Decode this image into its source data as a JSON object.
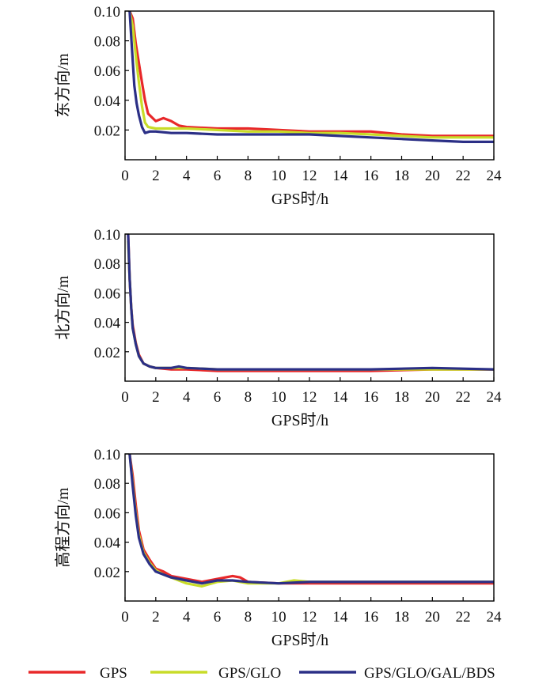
{
  "figure": {
    "legend_position": "bottom",
    "colors": {
      "GPS": "#e8282a",
      "GPS/GLO": "#c8dc28",
      "GPS/GLO/GAL/BDS": "#2b2f86"
    }
  },
  "legend": [
    {
      "label": "GPS",
      "color": "#e8282a"
    },
    {
      "label": "GPS/GLO",
      "color": "#c8dc28"
    },
    {
      "label": "GPS/GLO/GAL/BDS",
      "color": "#2b2f86"
    }
  ],
  "chart_data": [
    {
      "type": "line",
      "xlabel": "GPS时/h",
      "ylabel": "东方向/m",
      "xlim": [
        0,
        24
      ],
      "ylim": [
        0,
        0.1
      ],
      "xticks": [
        0,
        2,
        4,
        6,
        8,
        10,
        12,
        14,
        16,
        18,
        20,
        22,
        24
      ],
      "yticks": [
        0.02,
        0.04,
        0.06,
        0.08,
        0.1
      ],
      "xtick_labels": [
        "0",
        "2",
        "4",
        "6",
        "8",
        "10",
        "12",
        "14",
        "16",
        "18",
        "20",
        "22",
        "24"
      ],
      "ytick_labels": [
        "0.02",
        "0.04",
        "0.06",
        "0.08",
        "0.10"
      ],
      "grid": false,
      "series": [
        {
          "name": "GPS",
          "color": "#e8282a",
          "x": [
            0.3,
            0.5,
            0.7,
            0.9,
            1.1,
            1.3,
            1.5,
            2.0,
            2.5,
            3.0,
            3.5,
            4.0,
            6.0,
            8.0,
            10.0,
            12.0,
            14.0,
            16.0,
            18.0,
            20.0,
            22.0,
            24.0
          ],
          "y": [
            0.1,
            0.095,
            0.078,
            0.065,
            0.052,
            0.04,
            0.031,
            0.026,
            0.028,
            0.026,
            0.023,
            0.022,
            0.021,
            0.021,
            0.02,
            0.019,
            0.019,
            0.019,
            0.017,
            0.016,
            0.016,
            0.016
          ]
        },
        {
          "name": "GPS/GLO",
          "color": "#c8dc28",
          "x": [
            0.3,
            0.5,
            0.7,
            0.9,
            1.1,
            1.3,
            1.5,
            2.0,
            3.0,
            4.0,
            6.0,
            8.0,
            10.0,
            12.0,
            14.0,
            16.0,
            18.0,
            20.0,
            22.0,
            24.0
          ],
          "y": [
            0.1,
            0.09,
            0.07,
            0.052,
            0.036,
            0.025,
            0.022,
            0.021,
            0.021,
            0.021,
            0.02,
            0.019,
            0.019,
            0.018,
            0.018,
            0.017,
            0.016,
            0.015,
            0.015,
            0.015
          ]
        },
        {
          "name": "GPS/GLO/GAL/BDS",
          "color": "#2b2f86",
          "x": [
            0.3,
            0.45,
            0.6,
            0.75,
            0.9,
            1.1,
            1.3,
            1.6,
            2.0,
            3.0,
            4.0,
            6.0,
            8.0,
            10.0,
            12.0,
            14.0,
            16.0,
            18.0,
            20.0,
            22.0,
            24.0
          ],
          "y": [
            0.1,
            0.075,
            0.05,
            0.038,
            0.03,
            0.022,
            0.018,
            0.019,
            0.019,
            0.018,
            0.018,
            0.017,
            0.017,
            0.017,
            0.017,
            0.016,
            0.015,
            0.014,
            0.013,
            0.012,
            0.012
          ]
        }
      ]
    },
    {
      "type": "line",
      "xlabel": "GPS时/h",
      "ylabel": "北方向/m",
      "xlim": [
        0,
        24
      ],
      "ylim": [
        0,
        0.1
      ],
      "xticks": [
        0,
        2,
        4,
        6,
        8,
        10,
        12,
        14,
        16,
        18,
        20,
        22,
        24
      ],
      "yticks": [
        0.02,
        0.04,
        0.06,
        0.08,
        0.1
      ],
      "xtick_labels": [
        "0",
        "2",
        "4",
        "6",
        "8",
        "10",
        "12",
        "14",
        "16",
        "18",
        "20",
        "22",
        "24"
      ],
      "ytick_labels": [
        "0.02",
        "0.04",
        "0.06",
        "0.08",
        "0.10"
      ],
      "grid": false,
      "series": [
        {
          "name": "GPS",
          "color": "#e8282a",
          "x": [
            0.2,
            0.3,
            0.4,
            0.5,
            0.7,
            0.9,
            1.2,
            1.6,
            2.0,
            3.0,
            4.0,
            6.0,
            8.0,
            12.0,
            16.0,
            20.0,
            24.0
          ],
          "y": [
            0.1,
            0.07,
            0.05,
            0.038,
            0.026,
            0.018,
            0.012,
            0.01,
            0.009,
            0.008,
            0.008,
            0.007,
            0.007,
            0.007,
            0.007,
            0.008,
            0.008
          ]
        },
        {
          "name": "GPS/GLO",
          "color": "#c8dc28",
          "x": [
            0.2,
            0.3,
            0.4,
            0.5,
            0.7,
            0.9,
            1.2,
            1.6,
            2.0,
            3.0,
            4.0,
            6.0,
            8.0,
            12.0,
            16.0,
            20.0,
            24.0
          ],
          "y": [
            0.095,
            0.07,
            0.05,
            0.036,
            0.025,
            0.017,
            0.012,
            0.01,
            0.009,
            0.009,
            0.009,
            0.008,
            0.008,
            0.008,
            0.008,
            0.008,
            0.008
          ]
        },
        {
          "name": "GPS/GLO/GAL/BDS",
          "color": "#2b2f86",
          "x": [
            0.2,
            0.3,
            0.4,
            0.5,
            0.7,
            0.9,
            1.2,
            1.6,
            2.0,
            3.0,
            3.5,
            4.0,
            6.0,
            8.0,
            12.0,
            16.0,
            20.0,
            24.0
          ],
          "y": [
            0.1,
            0.07,
            0.05,
            0.036,
            0.025,
            0.017,
            0.012,
            0.01,
            0.009,
            0.009,
            0.01,
            0.009,
            0.008,
            0.008,
            0.008,
            0.008,
            0.009,
            0.008
          ]
        }
      ]
    },
    {
      "type": "line",
      "xlabel": "GPS时/h",
      "ylabel": "高程方向/m",
      "xlim": [
        0,
        24
      ],
      "ylim": [
        0,
        0.1
      ],
      "xticks": [
        0,
        2,
        4,
        6,
        8,
        10,
        12,
        14,
        16,
        18,
        20,
        22,
        24
      ],
      "yticks": [
        0.02,
        0.04,
        0.06,
        0.08,
        0.1
      ],
      "xtick_labels": [
        "0",
        "2",
        "4",
        "6",
        "8",
        "10",
        "12",
        "14",
        "16",
        "18",
        "20",
        "22",
        "24"
      ],
      "ytick_labels": [
        "0.02",
        "0.04",
        "0.06",
        "0.08",
        "0.10"
      ],
      "grid": false,
      "series": [
        {
          "name": "GPS",
          "color": "#e8282a",
          "x": [
            0.3,
            0.5,
            0.7,
            0.9,
            1.2,
            1.6,
            2.0,
            2.5,
            3.0,
            4.0,
            5.0,
            6.0,
            7.0,
            7.5,
            8.0,
            10.0,
            12.0,
            14.0,
            16.0,
            18.0,
            20.0,
            22.0,
            24.0
          ],
          "y": [
            0.1,
            0.085,
            0.065,
            0.048,
            0.035,
            0.028,
            0.022,
            0.02,
            0.017,
            0.015,
            0.013,
            0.015,
            0.017,
            0.016,
            0.013,
            0.012,
            0.012,
            0.012,
            0.012,
            0.012,
            0.012,
            0.012,
            0.012
          ]
        },
        {
          "name": "GPS/GLO",
          "color": "#c8dc28",
          "x": [
            0.3,
            0.5,
            0.7,
            0.9,
            1.2,
            1.6,
            2.0,
            2.5,
            3.0,
            4.0,
            5.0,
            6.0,
            7.0,
            8.0,
            10.0,
            11.0,
            12.0,
            14.0,
            16.0,
            18.0,
            20.0,
            22.0,
            24.0
          ],
          "y": [
            0.1,
            0.08,
            0.06,
            0.045,
            0.033,
            0.026,
            0.021,
            0.018,
            0.016,
            0.012,
            0.01,
            0.013,
            0.014,
            0.012,
            0.012,
            0.014,
            0.013,
            0.013,
            0.013,
            0.013,
            0.013,
            0.013,
            0.013
          ]
        },
        {
          "name": "GPS/GLO/GAL/BDS",
          "color": "#2b2f86",
          "x": [
            0.3,
            0.5,
            0.7,
            0.9,
            1.2,
            1.6,
            2.0,
            2.5,
            3.0,
            4.0,
            5.0,
            6.0,
            7.0,
            8.0,
            10.0,
            12.0,
            14.0,
            16.0,
            18.0,
            20.0,
            22.0,
            24.0
          ],
          "y": [
            0.1,
            0.078,
            0.058,
            0.043,
            0.032,
            0.025,
            0.02,
            0.018,
            0.016,
            0.014,
            0.012,
            0.014,
            0.014,
            0.013,
            0.012,
            0.013,
            0.013,
            0.013,
            0.013,
            0.013,
            0.013,
            0.013
          ]
        }
      ]
    }
  ]
}
